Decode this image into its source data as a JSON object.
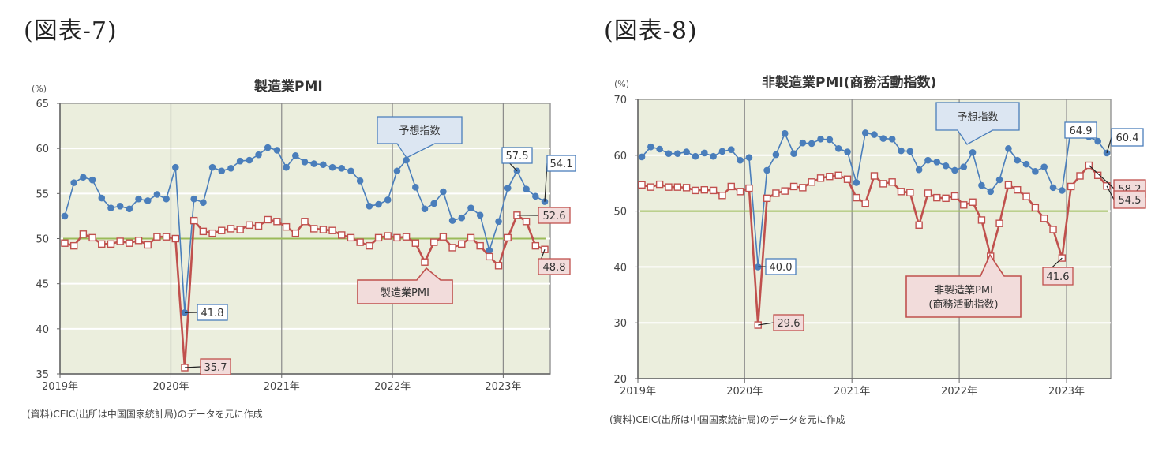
{
  "figures": [
    {
      "label": "(図表-7)",
      "title": "製造業PMI",
      "unit": "(%)",
      "source": "(資料)CEIC(出所は中国国家統計局)のデータを元に作成",
      "callouts": {
        "expect": "予想指数",
        "main": [
          "製造業PMI"
        ]
      },
      "annotations": {
        "expect": [
          "41.8",
          "57.5",
          "54.1"
        ],
        "main": [
          "35.7",
          "52.6",
          "48.8"
        ]
      }
    },
    {
      "label": "(図表-8)",
      "title": "非製造業PMI(商務活動指数)",
      "unit": "(%)",
      "source": "(資料)CEIC(出所は中国国家統計局)のデータを元に作成",
      "callouts": {
        "expect": "予想指数",
        "main": [
          "非製造業PMI",
          "(商務活動指数)"
        ]
      },
      "annotations": {
        "expect": [
          "40.0",
          "64.9",
          "60.4"
        ],
        "main": [
          "29.6",
          "41.6",
          "58.2",
          "54.5"
        ]
      }
    }
  ],
  "colors": {
    "expect": "#4a7ebb",
    "main": "#c0504d",
    "baseline": "#9bbb59",
    "plot_bg": "#ebeedd",
    "grid": "#ffffff",
    "vline": "#8a8a8a"
  },
  "chart_data": [
    {
      "type": "line",
      "title": "製造業PMI",
      "xlabel": "",
      "ylabel": "(%)",
      "ylim": [
        35,
        65
      ],
      "yticks": [
        35,
        40,
        45,
        50,
        55,
        60,
        65
      ],
      "xticks": [
        "2019年",
        "2020年",
        "2021年",
        "2022年",
        "2023年"
      ],
      "x_start": "2019-01",
      "x_end": "2023-05",
      "reference_line": 50,
      "grid": true,
      "series": [
        {
          "name": "予想指数",
          "marker": "filled-circle",
          "values": [
            52.5,
            56.2,
            56.8,
            56.5,
            54.5,
            53.4,
            53.6,
            53.3,
            54.4,
            54.2,
            54.9,
            54.4,
            57.9,
            41.8,
            54.4,
            54.0,
            57.9,
            57.5,
            57.8,
            58.6,
            58.7,
            59.3,
            60.1,
            59.8,
            57.9,
            59.2,
            58.5,
            58.3,
            58.2,
            57.9,
            57.8,
            57.5,
            56.4,
            53.6,
            53.8,
            54.3,
            57.5,
            58.7,
            55.7,
            53.3,
            53.9,
            55.2,
            52.0,
            52.3,
            53.4,
            52.6,
            48.7,
            51.9,
            55.6,
            57.5,
            55.5,
            54.7,
            54.1
          ]
        },
        {
          "name": "製造業PMI",
          "marker": "open-square",
          "values": [
            49.5,
            49.2,
            50.5,
            50.1,
            49.4,
            49.4,
            49.7,
            49.5,
            49.8,
            49.3,
            50.2,
            50.2,
            50.0,
            35.7,
            52.0,
            50.8,
            50.6,
            50.9,
            51.1,
            51.0,
            51.5,
            51.4,
            52.1,
            51.9,
            51.3,
            50.6,
            51.9,
            51.1,
            51.0,
            50.9,
            50.4,
            50.1,
            49.6,
            49.2,
            50.1,
            50.3,
            50.1,
            50.2,
            49.5,
            47.4,
            49.6,
            50.2,
            49.0,
            49.4,
            50.1,
            49.2,
            48.0,
            47.0,
            50.1,
            52.6,
            51.9,
            49.2,
            48.8
          ]
        }
      ]
    },
    {
      "type": "line",
      "title": "非製造業PMI(商務活動指数)",
      "xlabel": "",
      "ylabel": "(%)",
      "ylim": [
        20,
        70
      ],
      "yticks": [
        20,
        30,
        40,
        50,
        60,
        70
      ],
      "xticks": [
        "2019年",
        "2020年",
        "2021年",
        "2022年",
        "2023年"
      ],
      "x_start": "2019-01",
      "x_end": "2023-05",
      "reference_line": 50,
      "grid": true,
      "series": [
        {
          "name": "予想指数",
          "marker": "filled-circle",
          "values": [
            59.7,
            61.5,
            61.1,
            60.3,
            60.3,
            60.6,
            59.8,
            60.4,
            59.8,
            60.7,
            61.0,
            59.1,
            59.6,
            40.0,
            57.3,
            60.1,
            63.9,
            60.3,
            62.2,
            62.1,
            62.9,
            62.8,
            61.2,
            60.6,
            55.1,
            64.0,
            63.7,
            63.0,
            62.9,
            60.8,
            60.7,
            57.4,
            59.1,
            58.8,
            58.1,
            57.3,
            57.9,
            60.5,
            54.6,
            53.5,
            55.6,
            61.2,
            59.1,
            58.4,
            57.1,
            57.9,
            54.2,
            53.7,
            64.9,
            64.9,
            63.3,
            62.5,
            60.4
          ]
        },
        {
          "name": "非製造業PMI(商務活動指数)",
          "marker": "open-square",
          "values": [
            54.7,
            54.3,
            54.8,
            54.3,
            54.3,
            54.2,
            53.7,
            53.8,
            53.7,
            52.8,
            54.4,
            53.5,
            54.1,
            29.6,
            52.3,
            53.2,
            53.6,
            54.4,
            54.2,
            55.2,
            55.9,
            56.2,
            56.4,
            55.7,
            52.4,
            51.4,
            56.3,
            54.9,
            55.2,
            53.5,
            53.3,
            47.5,
            53.2,
            52.4,
            52.3,
            52.7,
            51.1,
            51.6,
            48.4,
            41.9,
            47.8,
            54.7,
            53.8,
            52.6,
            50.6,
            48.7,
            46.7,
            41.6,
            54.4,
            56.3,
            58.2,
            56.4,
            54.5
          ]
        }
      ]
    }
  ]
}
